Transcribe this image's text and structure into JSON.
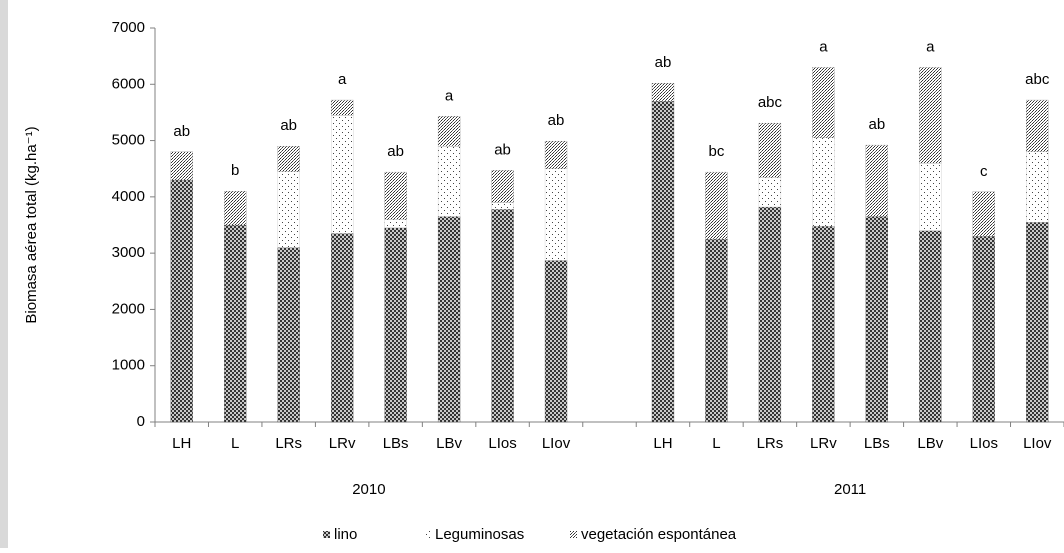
{
  "chart_data": {
    "type": "stacked_bar",
    "ylabel": "Biomasa aérea total (kg.ha⁻¹)",
    "categories": [
      "LH",
      "L",
      "LRs",
      "LRv",
      "LBs",
      "LBv",
      "LIos",
      "LIov",
      null,
      "LH",
      "L",
      "LRs",
      "LRv",
      "LBs",
      "LBv",
      "LIos",
      "LIov"
    ],
    "group_labels": [
      "2010",
      "2011"
    ],
    "annotations": [
      "ab",
      "b",
      "ab",
      "a",
      "ab",
      "a",
      "ab",
      "ab",
      null,
      "ab",
      "bc",
      "abc",
      "a",
      "ab",
      "a",
      "c",
      "abc"
    ],
    "series": [
      {
        "name": "lino",
        "color": "#555555",
        "values": [
          4300,
          3500,
          3100,
          3350,
          3450,
          3650,
          3780,
          2870,
          null,
          5700,
          3250,
          3820,
          3480,
          3650,
          3400,
          3300,
          3550
        ]
      },
      {
        "name": "Leguminosas",
        "color": "#bbbbbb",
        "values": [
          0,
          0,
          1350,
          2100,
          150,
          1250,
          120,
          1630,
          null,
          0,
          0,
          530,
          1570,
          0,
          1200,
          0,
          1250
        ]
      },
      {
        "name": "vegetación espontánea",
        "color": "#888888",
        "values": [
          500,
          600,
          450,
          270,
          840,
          530,
          570,
          490,
          null,
          320,
          1190,
          960,
          1250,
          1270,
          1700,
          790,
          920
        ]
      }
    ],
    "ylim": [
      0,
      7000
    ],
    "yticks": [
      0,
      1000,
      2000,
      3000,
      4000,
      5000,
      6000,
      7000
    ],
    "grid": false
  }
}
